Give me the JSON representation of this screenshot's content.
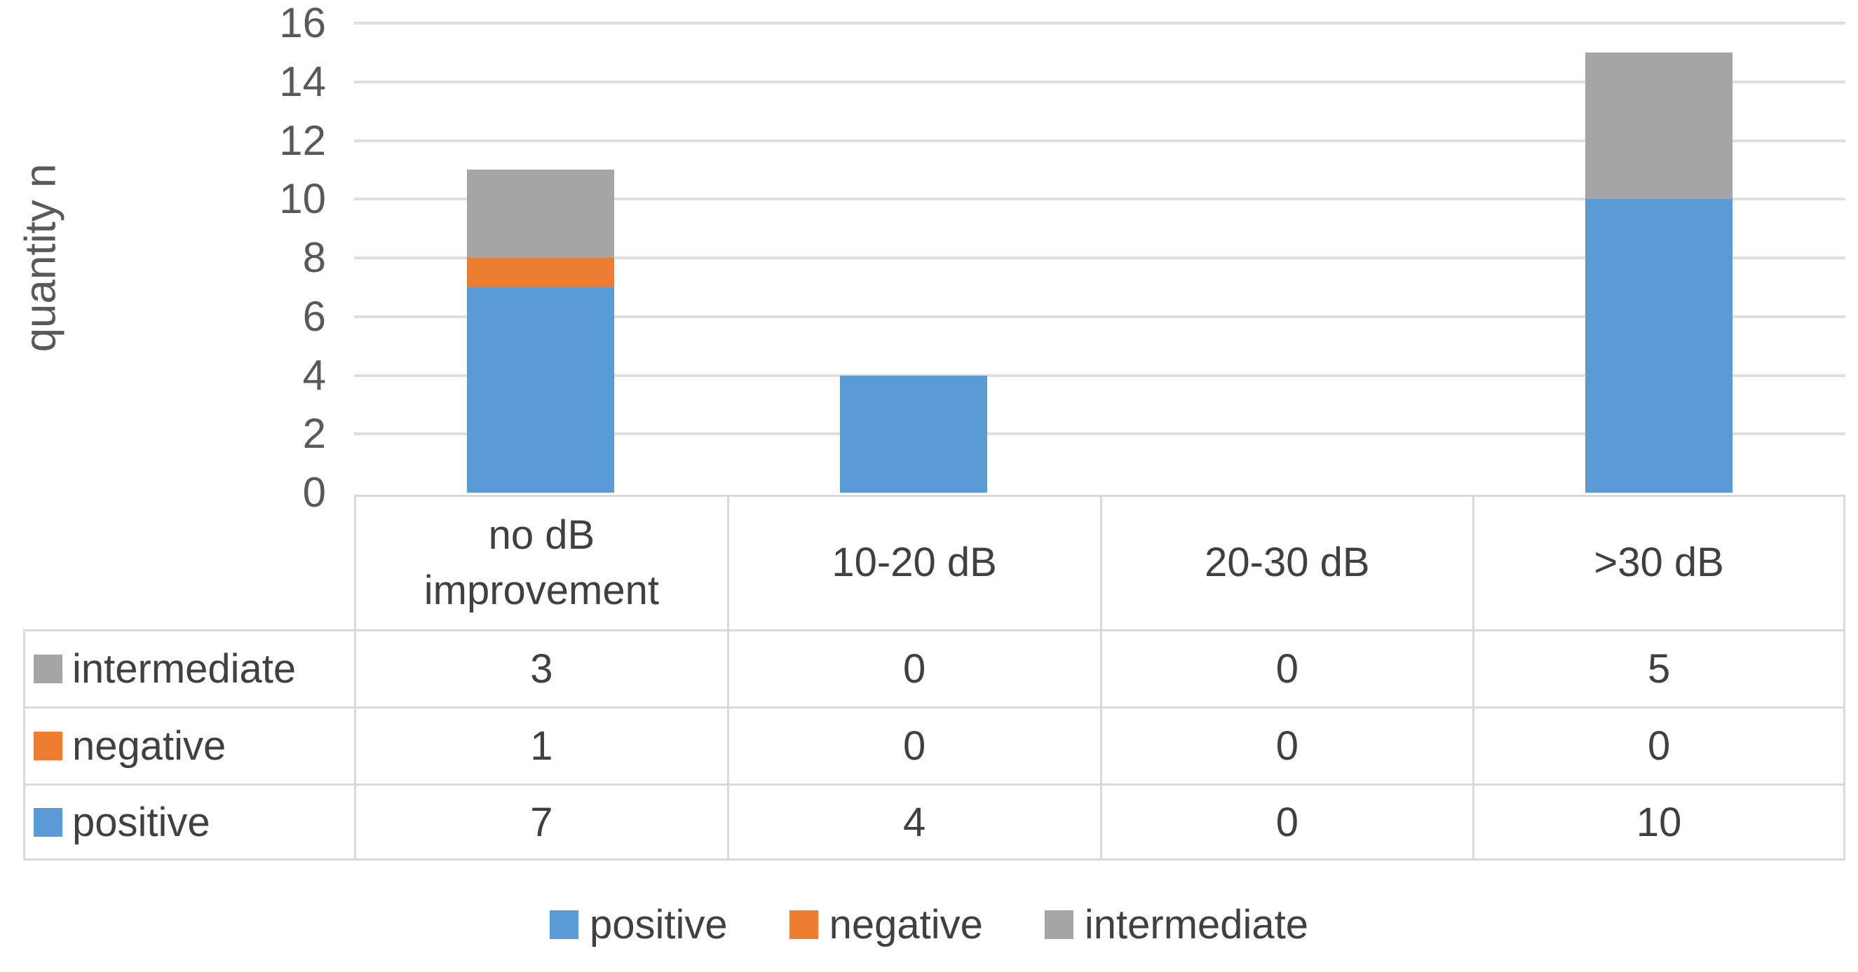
{
  "chart_data": {
    "type": "bar",
    "stacked": true,
    "title": "",
    "xlabel": "",
    "ylabel": "quantity n",
    "ylim": [
      0,
      16
    ],
    "yticks": [
      0,
      2,
      4,
      6,
      8,
      10,
      12,
      14,
      16
    ],
    "grid": true,
    "categories": [
      "no dB\nimprovement",
      "10-20 dB",
      "20-30 dB",
      ">30 dB"
    ],
    "series": [
      {
        "name": "positive",
        "color": "#5B9BD5",
        "values": [
          7,
          4,
          0,
          10
        ]
      },
      {
        "name": "negative",
        "color": "#ED7D31",
        "values": [
          1,
          0,
          0,
          0
        ]
      },
      {
        "name": "intermediate",
        "color": "#A5A5A5",
        "values": [
          3,
          0,
          0,
          5
        ]
      }
    ],
    "data_table": {
      "row_order": [
        "intermediate",
        "negative",
        "positive"
      ],
      "rows": [
        {
          "label": "intermediate",
          "values": [
            "3",
            "0",
            "0",
            "5"
          ]
        },
        {
          "label": "negative",
          "values": [
            "1",
            "0",
            "0",
            "0"
          ]
        },
        {
          "label": "positive",
          "values": [
            "7",
            "4",
            "0",
            "10"
          ]
        }
      ]
    },
    "legend": {
      "position": "bottom",
      "entries": [
        "positive",
        "negative",
        "intermediate"
      ]
    }
  },
  "colors": {
    "gridline": "#DEDEDE",
    "table_border": "#D9D9D9",
    "axis_text": "#595959",
    "table_text": "#404040"
  }
}
